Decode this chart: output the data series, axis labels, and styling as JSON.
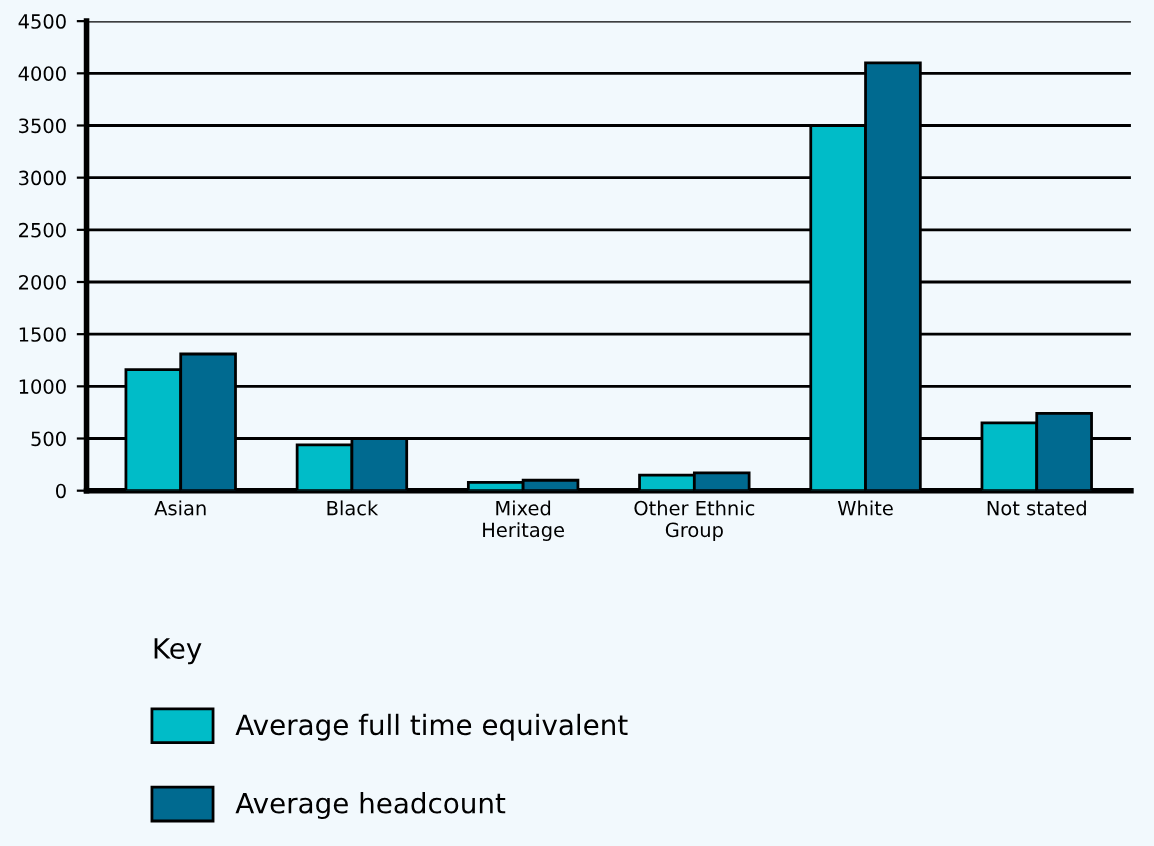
{
  "chart_data": {
    "type": "bar",
    "categories": [
      "Asian",
      "Black",
      "Mixed\nHeritage",
      "Other Ethnic\nGroup",
      "White",
      "Not stated"
    ],
    "series": [
      {
        "name": "Average full time equivalent",
        "color": "#00bcc8",
        "values": [
          1160,
          440,
          80,
          150,
          3500,
          650
        ]
      },
      {
        "name": "Average headcount",
        "color": "#006a90",
        "values": [
          1310,
          500,
          100,
          170,
          4100,
          740
        ]
      }
    ],
    "ylim": [
      0,
      4500
    ],
    "yticks": [
      0,
      500,
      1000,
      1500,
      2000,
      2500,
      3000,
      3500,
      4000,
      4500
    ],
    "grid": "y",
    "legend": "bottom",
    "legend_title": "Key"
  }
}
